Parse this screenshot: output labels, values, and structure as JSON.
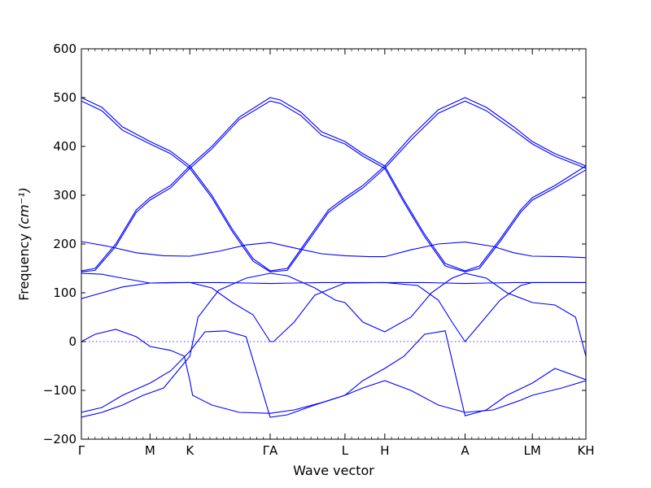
{
  "chart_data": {
    "type": "line",
    "xlabel": "Wave vector",
    "ylabel": "Frequency",
    "ylabel_unit": "(cm⁻¹)",
    "ylim": [
      -200,
      600
    ],
    "yticks": [
      -200,
      -100,
      0,
      100,
      200,
      300,
      400,
      500,
      600
    ],
    "ytick_labels": [
      "−200",
      "−100",
      "0",
      "100",
      "200",
      "300",
      "400",
      "500",
      "600"
    ],
    "grid": false,
    "legend": "none",
    "line_color": "#0000ff",
    "zero_line": true,
    "high_symmetry_points": [
      {
        "label": "Γ",
        "pos": 0
      },
      {
        "label": "M",
        "pos": 1
      },
      {
        "label": "K",
        "pos": 1.58
      },
      {
        "label": "ΓA",
        "pos": 2.75
      },
      {
        "label": "L",
        "pos": 3.84
      },
      {
        "label": "H",
        "pos": 4.42
      },
      {
        "label": "A",
        "pos": 5.59
      },
      {
        "label": "LM",
        "pos": 6.57
      },
      {
        "label": "KH",
        "pos": 7.35
      }
    ],
    "series": [
      {
        "x": [
          0,
          0.3,
          0.6,
          1.0,
          1.3,
          1.58,
          1.9,
          2.3,
          2.75,
          2.9,
          3.2,
          3.5,
          3.84,
          4.1,
          4.42,
          4.8,
          5.2,
          5.59,
          5.9,
          6.3,
          6.57,
          6.9,
          7.35
        ],
        "y": [
          500,
          480,
          440,
          410,
          390,
          360,
          400,
          460,
          500,
          495,
          470,
          430,
          410,
          385,
          360,
          420,
          475,
          500,
          480,
          440,
          410,
          385,
          360
        ]
      },
      {
        "x": [
          0,
          0.3,
          0.6,
          1.0,
          1.3,
          1.58,
          1.9,
          2.3,
          2.75,
          2.9,
          3.2,
          3.5,
          3.84,
          4.1,
          4.42,
          4.8,
          5.2,
          5.59,
          5.9,
          6.3,
          6.57,
          6.9,
          7.35
        ],
        "y": [
          493,
          473,
          433,
          405,
          385,
          355,
          395,
          455,
          493,
          488,
          463,
          423,
          405,
          380,
          355,
          413,
          468,
          493,
          473,
          433,
          405,
          380,
          355
        ]
      },
      {
        "x": [
          0,
          0.2,
          0.5,
          0.8,
          1.0,
          1.3,
          1.58,
          1.9,
          2.2,
          2.5,
          2.75,
          3.0,
          3.3,
          3.6,
          3.84,
          4.1,
          4.42,
          4.7,
          5.0,
          5.3,
          5.59,
          5.8,
          6.1,
          6.4,
          6.57,
          6.9,
          7.35
        ],
        "y": [
          145,
          150,
          200,
          270,
          295,
          320,
          360,
          300,
          230,
          170,
          145,
          150,
          210,
          270,
          295,
          320,
          360,
          290,
          220,
          160,
          145,
          155,
          210,
          270,
          295,
          320,
          360
        ]
      },
      {
        "x": [
          0,
          0.2,
          0.5,
          0.8,
          1.0,
          1.3,
          1.58,
          1.9,
          2.2,
          2.5,
          2.75,
          3.0,
          3.3,
          3.6,
          3.84,
          4.1,
          4.42,
          4.7,
          5.0,
          5.3,
          5.59,
          5.8,
          6.1,
          6.4,
          6.57,
          6.9,
          7.35
        ],
        "y": [
          143,
          146,
          195,
          265,
          290,
          315,
          355,
          295,
          225,
          165,
          143,
          146,
          205,
          265,
          290,
          315,
          355,
          285,
          215,
          155,
          143,
          150,
          205,
          265,
          290,
          315,
          352
        ]
      },
      {
        "x": [
          0,
          0.4,
          0.8,
          1.2,
          1.58,
          2.0,
          2.4,
          2.75,
          3.1,
          3.5,
          3.84,
          4.2,
          4.42,
          4.8,
          5.2,
          5.59,
          6.0,
          6.3,
          6.57,
          7.0,
          7.35
        ],
        "y": [
          205,
          195,
          182,
          176,
          175,
          185,
          198,
          203,
          192,
          180,
          176,
          174,
          174,
          188,
          200,
          204,
          195,
          182,
          175,
          174,
          172
        ]
      },
      {
        "x": [
          0,
          0.3,
          0.6,
          1.0,
          1.58,
          2.0,
          2.4,
          2.75,
          3.1,
          3.5,
          3.84,
          4.42,
          5.0,
          5.3,
          5.59,
          5.9,
          6.3,
          6.57,
          7.35
        ],
        "y": [
          88,
          100,
          112,
          120,
          121,
          121,
          120,
          119,
          120,
          121,
          121,
          121,
          121,
          120,
          119,
          120,
          121,
          121,
          121
        ]
      },
      {
        "x": [
          0,
          0.3,
          0.6,
          1.0,
          1.3,
          1.58,
          1.9,
          2.2,
          2.5,
          2.75,
          2.8,
          3.1,
          3.4,
          3.84,
          4.42,
          4.9,
          5.2,
          5.4,
          5.59,
          5.8,
          6.1,
          6.4,
          6.57,
          7.0,
          7.35
        ],
        "y": [
          140,
          138,
          130,
          120,
          121,
          121,
          110,
          80,
          55,
          0,
          0,
          40,
          95,
          120,
          121,
          115,
          85,
          40,
          0,
          35,
          85,
          115,
          121,
          121,
          121
        ]
      },
      {
        "x": [
          0,
          0.2,
          0.5,
          0.8,
          1.0,
          1.3,
          1.5,
          1.58,
          1.62,
          1.9,
          2.3,
          2.75,
          3.1,
          3.5,
          3.84,
          4.1,
          4.42,
          4.8,
          5.2,
          5.59,
          6.0,
          6.4,
          6.57,
          7.0,
          7.35
        ],
        "y": [
          0,
          15,
          25,
          10,
          -10,
          -18,
          -30,
          -80,
          -110,
          -130,
          -145,
          -147,
          -140,
          -125,
          -110,
          -95,
          -80,
          -100,
          -130,
          -145,
          -140,
          -120,
          -110,
          -95,
          -80
        ]
      },
      {
        "x": [
          0,
          0.3,
          0.6,
          0.9,
          1.2,
          1.58,
          1.7,
          2.0,
          2.4,
          2.75,
          3.0,
          3.4,
          3.7,
          3.84,
          4.1,
          4.42,
          4.8,
          5.1,
          5.4,
          5.59,
          5.9,
          6.2,
          6.57,
          6.9,
          7.2,
          7.35
        ],
        "y": [
          -155,
          -145,
          -130,
          -110,
          -95,
          -30,
          50,
          105,
          130,
          140,
          135,
          110,
          85,
          80,
          40,
          20,
          50,
          100,
          130,
          140,
          130,
          100,
          80,
          75,
          50,
          -30
        ]
      },
      {
        "x": [
          0,
          0.3,
          0.6,
          1.0,
          1.3,
          1.58,
          1.8,
          2.1,
          2.4,
          2.75,
          3.0,
          3.4,
          3.84,
          4.1,
          4.42,
          4.7,
          5.0,
          5.3,
          5.59,
          5.9,
          6.2,
          6.57,
          6.9,
          7.35
        ],
        "y": [
          -145,
          -135,
          -110,
          -85,
          -60,
          -20,
          20,
          22,
          10,
          -155,
          -150,
          -130,
          -110,
          -80,
          -55,
          -30,
          15,
          22,
          -152,
          -140,
          -110,
          -85,
          -55,
          -78
        ]
      }
    ]
  }
}
